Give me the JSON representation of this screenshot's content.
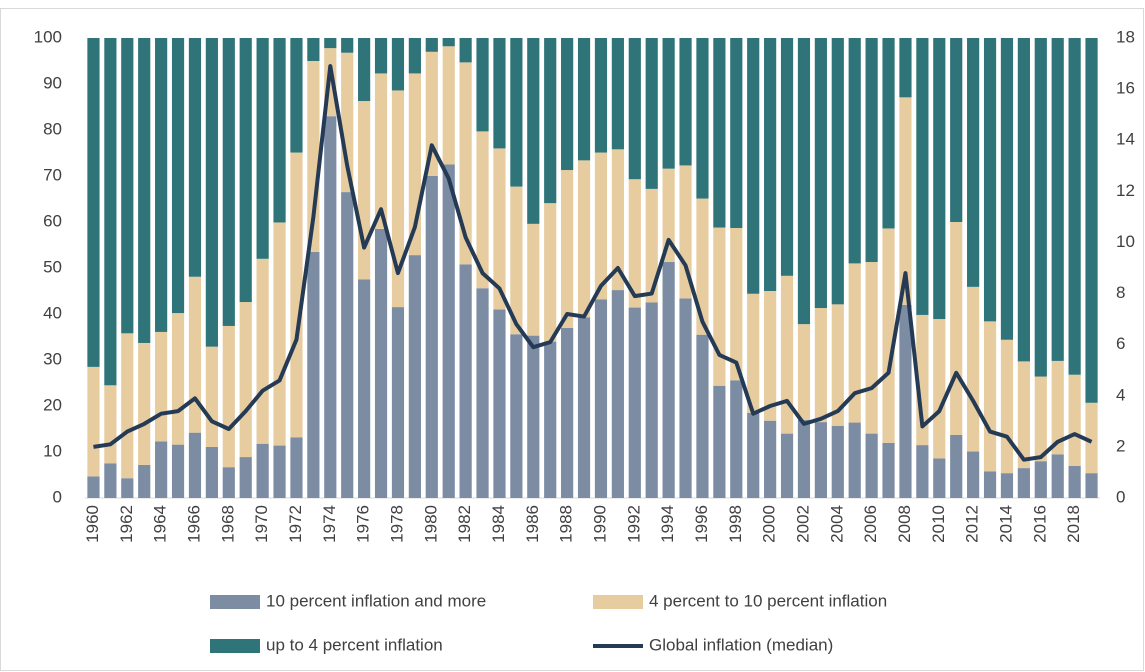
{
  "chart_data": {
    "type": "bar",
    "stacked": true,
    "categories": [
      "1960",
      null,
      "1962",
      null,
      "1964",
      null,
      "1966",
      null,
      "1968",
      null,
      "1970",
      null,
      "1972",
      null,
      "1974",
      null,
      "1976",
      null,
      "1978",
      null,
      "1980",
      null,
      "1982",
      null,
      "1984",
      null,
      "1986",
      null,
      "1988",
      null,
      "1990",
      null,
      "1992",
      null,
      "1994",
      null,
      "1996",
      null,
      "1998",
      null,
      "2000",
      null,
      "2002",
      null,
      "2004",
      null,
      "2006",
      null,
      "2008",
      null,
      "2010",
      null,
      "2012",
      null,
      "2014",
      null,
      "2016",
      null,
      "2018",
      null
    ],
    "series": [
      {
        "name": "10 percent inflation and more",
        "color": "#7b8ca3",
        "values": [
          4.7,
          7.5,
          4.3,
          7.2,
          12.3,
          11.6,
          14.2,
          11.1,
          6.7,
          8.9,
          11.8,
          11.4,
          13.2,
          53.5,
          83.0,
          66.5,
          47.5,
          58.5,
          41.5,
          52.8,
          70.0,
          72.5,
          50.8,
          45.6,
          41.0,
          35.6,
          35.3,
          34.0,
          37.0,
          39.3,
          43.2,
          45.2,
          41.4,
          42.5,
          51.3,
          43.4,
          35.5,
          24.4,
          25.6,
          18.5,
          16.8,
          14.0,
          17.0,
          16.5,
          15.7,
          16.4,
          14.0,
          12.0,
          42.0,
          11.5,
          8.6,
          13.7,
          10.1,
          5.8,
          5.4,
          6.5,
          8.0,
          9.5,
          7.0,
          5.4
        ]
      },
      {
        "name": "4 percent to 10 percent inflation",
        "color": "#e6cc9f",
        "values": [
          23.8,
          17.0,
          31.5,
          26.5,
          23.8,
          28.6,
          33.9,
          21.8,
          30.7,
          33.7,
          40.2,
          48.5,
          61.9,
          41.5,
          14.8,
          30.3,
          38.8,
          33.8,
          47.1,
          39.5,
          27.0,
          25.7,
          43.9,
          34.1,
          35.0,
          32.1,
          24.3,
          30.1,
          34.3,
          34.1,
          31.9,
          30.6,
          27.9,
          24.7,
          20.3,
          28.9,
          29.6,
          34.4,
          33.1,
          25.9,
          28.2,
          34.3,
          20.8,
          24.8,
          26.4,
          34.6,
          37.3,
          46.6,
          45.1,
          28.3,
          30.3,
          46.3,
          35.8,
          32.6,
          29.0,
          23.2,
          18.4,
          20.3,
          19.8,
          15.3
        ]
      },
      {
        "name": "up to 4 percent inflation",
        "color": "#2e7479",
        "values": [
          71.5,
          75.5,
          64.2,
          66.3,
          63.9,
          59.8,
          51.9,
          67.1,
          62.6,
          57.4,
          48.0,
          40.1,
          24.9,
          5.0,
          2.2,
          3.2,
          13.7,
          7.7,
          11.4,
          7.7,
          3.0,
          1.8,
          5.3,
          20.3,
          24.0,
          32.3,
          40.4,
          35.9,
          28.7,
          26.6,
          24.9,
          24.2,
          30.7,
          32.8,
          28.4,
          27.7,
          34.9,
          41.2,
          41.3,
          55.6,
          55.0,
          51.7,
          62.2,
          58.7,
          57.9,
          49.0,
          48.7,
          41.4,
          12.9,
          60.2,
          61.1,
          40.0,
          54.1,
          61.6,
          65.6,
          70.3,
          73.6,
          70.2,
          73.2,
          79.3
        ]
      },
      {
        "name": "Global inflation (median)",
        "color": "#243a55",
        "type": "line",
        "axis": "y2",
        "values": [
          2.0,
          2.1,
          2.6,
          2.9,
          3.3,
          3.4,
          3.9,
          3.0,
          2.7,
          3.4,
          4.2,
          4.6,
          6.2,
          11.0,
          16.9,
          13.0,
          9.8,
          11.3,
          8.8,
          10.6,
          13.8,
          12.5,
          10.2,
          8.8,
          8.2,
          6.8,
          5.9,
          6.1,
          7.2,
          7.1,
          8.3,
          9.0,
          7.9,
          8.0,
          10.1,
          9.1,
          6.9,
          5.6,
          5.3,
          3.3,
          3.6,
          3.8,
          2.9,
          3.1,
          3.4,
          4.1,
          4.3,
          4.9,
          8.8,
          2.8,
          3.4,
          4.9,
          3.8,
          2.6,
          2.4,
          1.5,
          1.6,
          2.2,
          2.5,
          2.2
        ]
      }
    ],
    "ylim": [
      0,
      100
    ],
    "yticks": [
      0,
      10,
      20,
      30,
      40,
      50,
      60,
      70,
      80,
      90,
      100
    ],
    "y2lim": [
      0,
      18
    ],
    "y2ticks": [
      0,
      2,
      4,
      6,
      8,
      10,
      12,
      14,
      16,
      18
    ],
    "grid": false,
    "legend": "bottom"
  }
}
